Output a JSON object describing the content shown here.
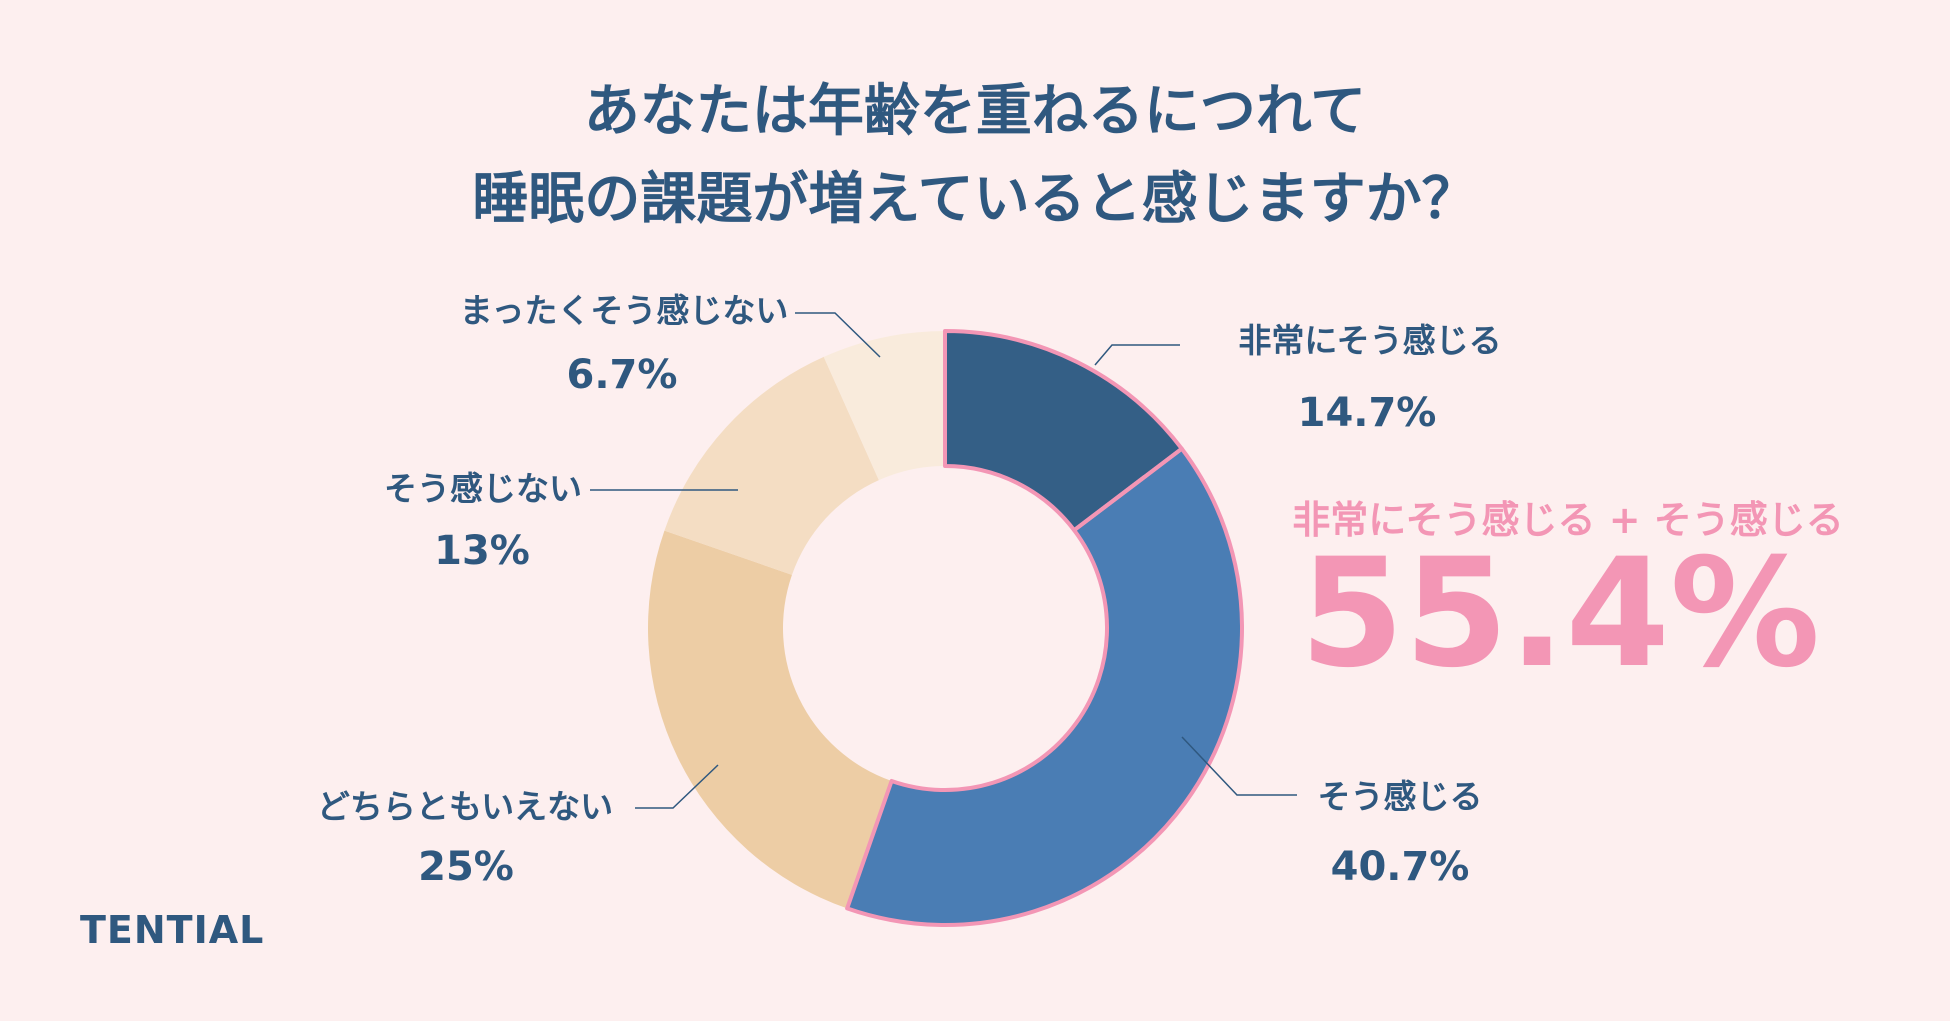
{
  "title": {
    "line1": "あなたは年齢を重ねるにつれて",
    "line2": "睡眠の課題が増えていると感じますか？"
  },
  "chart_data": {
    "type": "pie",
    "variant": "donut",
    "categories": [
      "非常にそう感じる",
      "そう感じる",
      "どちらともいえない",
      "そう感じない",
      "まったくそう感じない"
    ],
    "values": [
      14.7,
      40.7,
      25,
      13,
      6.7
    ],
    "value_labels": [
      "14.7%",
      "40.7%",
      "25%",
      "13%",
      "6.7%"
    ],
    "colors": [
      "#345f86",
      "#4a7db4",
      "#edcda5",
      "#f4ddc3",
      "#f9ebdc"
    ],
    "highlight_outline": "#f396b5",
    "highlighted": [
      0,
      1
    ]
  },
  "callout": {
    "label": "非常にそう感じる + そう感じる",
    "value": "55.4%"
  },
  "brand": "TENTIAL"
}
